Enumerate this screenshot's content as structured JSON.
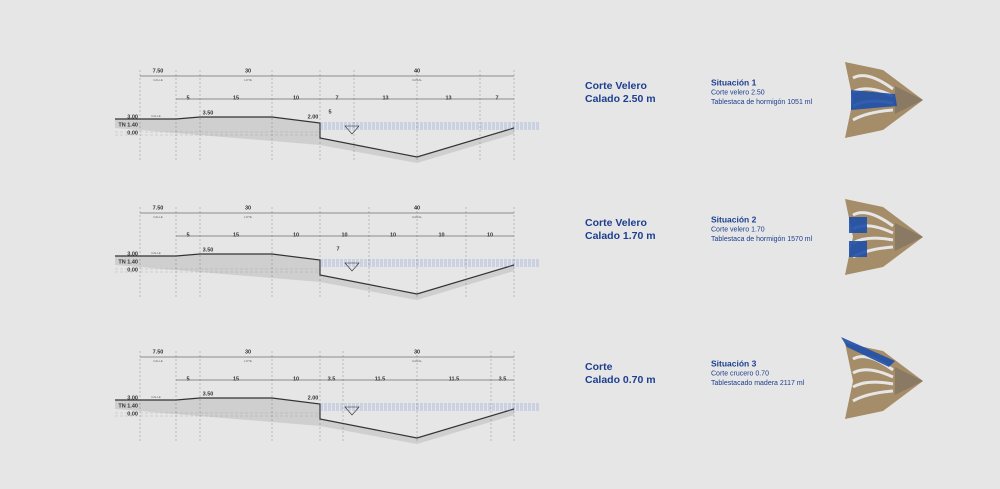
{
  "sections": [
    {
      "top": [
        "7.50",
        "30",
        "40"
      ],
      "top_sub": [
        "CALLE",
        "LOTE",
        "CANAL"
      ],
      "parts": [
        "5",
        "15",
        "10",
        "7",
        "13",
        "13",
        "7"
      ],
      "levels": [
        "3.00",
        "TN 1.40",
        "0.00"
      ],
      "street": "CALLE",
      "marks": [
        "3.50",
        "2.00",
        "5"
      ],
      "title": [
        "Corte Velero",
        "Calado 2.50 m"
      ],
      "situation": [
        "Situación 1",
        "Corte velero 2.50",
        "Tablestaca de hormigón 1051 ml"
      ]
    },
    {
      "top": [
        "7.50",
        "30",
        "40"
      ],
      "top_sub": [
        "CALLE",
        "LOTE",
        "CANAL"
      ],
      "parts": [
        "5",
        "15",
        "10",
        "10",
        "10",
        "10",
        "10"
      ],
      "levels": [
        "3.00",
        "TN 1.40",
        "0.00"
      ],
      "street": "CALLE",
      "marks": [
        "3.50",
        "7"
      ],
      "title": [
        "Corte Velero",
        "Calado 1.70 m"
      ],
      "situation": [
        "Situación 2",
        "Corte velero 1.70",
        "Tablestaca de hormigón 1570 ml"
      ]
    },
    {
      "top": [
        "7.50",
        "30",
        "30"
      ],
      "top_sub": [
        "CALLE",
        "LOTE",
        "CANAL"
      ],
      "parts": [
        "5",
        "15",
        "10",
        "3.5",
        "11.5",
        "11.5",
        "3.5"
      ],
      "levels": [
        "3.00",
        "TN 1.40",
        "0.00"
      ],
      "street": "CALLE",
      "marks": [
        "3.50",
        "2.00"
      ],
      "title": [
        "Corte",
        "Calado 0.70 m"
      ],
      "situation": [
        "Situación 3",
        "Corte crucero 0.70",
        "Tablestacado madera 2117 ml"
      ]
    }
  ]
}
